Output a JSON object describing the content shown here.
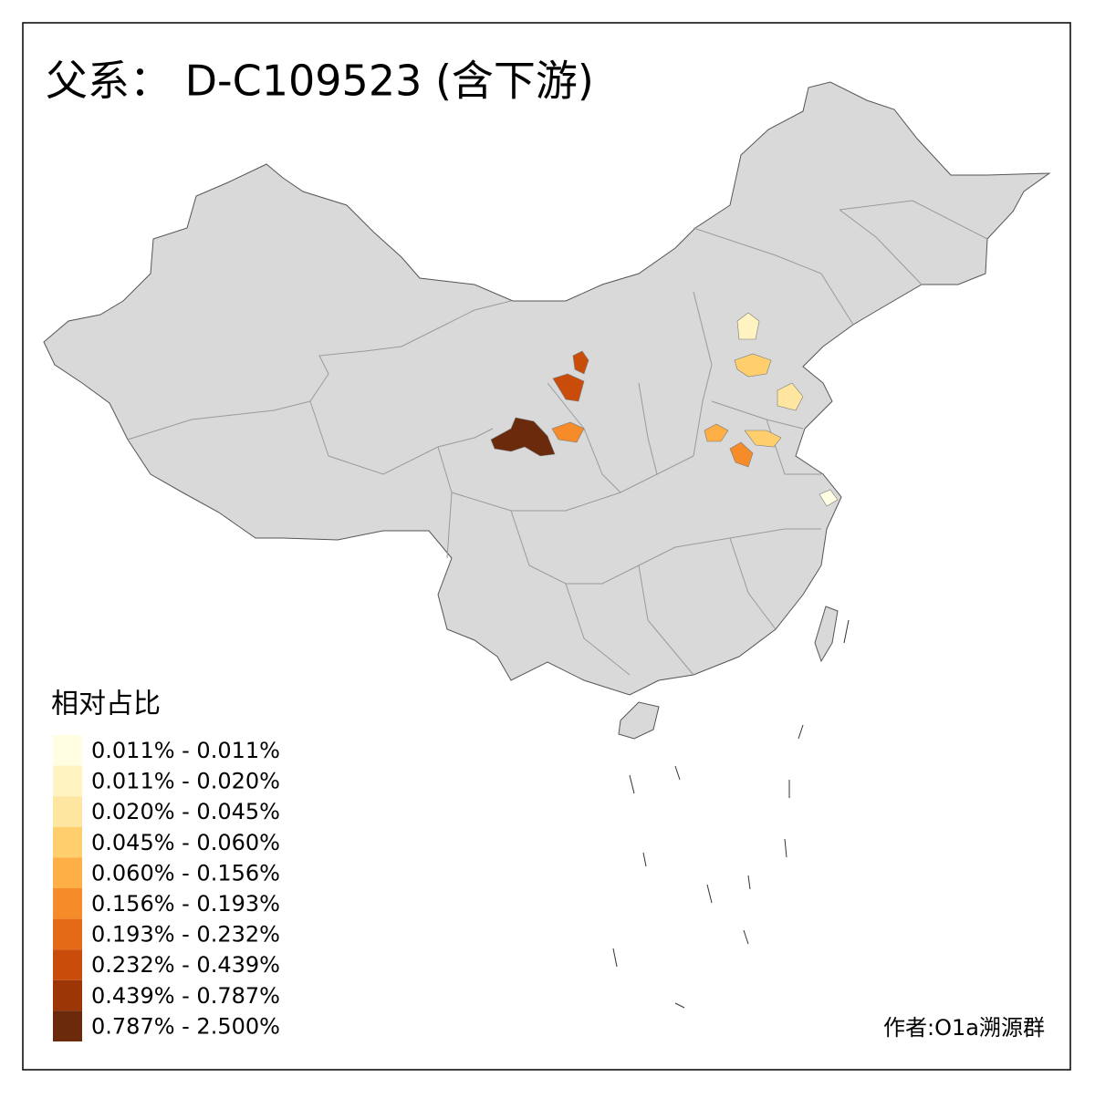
{
  "title": "父系： D-C109523 (含下游)",
  "legend": {
    "title": "相对占比",
    "items": [
      {
        "label": "0.011% - 0.011%",
        "color": "#fffde2"
      },
      {
        "label": "0.011% - 0.020%",
        "color": "#fff3c2"
      },
      {
        "label": "0.020% - 0.045%",
        "color": "#fee6a0"
      },
      {
        "label": "0.045% - 0.060%",
        "color": "#fecf6c"
      },
      {
        "label": "0.060% - 0.156%",
        "color": "#fdae45"
      },
      {
        "label": "0.156% - 0.193%",
        "color": "#f68b2a"
      },
      {
        "label": "0.193% - 0.232%",
        "color": "#e46a17"
      },
      {
        "label": "0.232% - 0.439%",
        "color": "#c94c0a"
      },
      {
        "label": "0.439% - 0.787%",
        "color": "#9c3607"
      },
      {
        "label": "0.787% - 2.500%",
        "color": "#6b2a0b"
      }
    ]
  },
  "credit": "作者:O1a溯源群"
}
